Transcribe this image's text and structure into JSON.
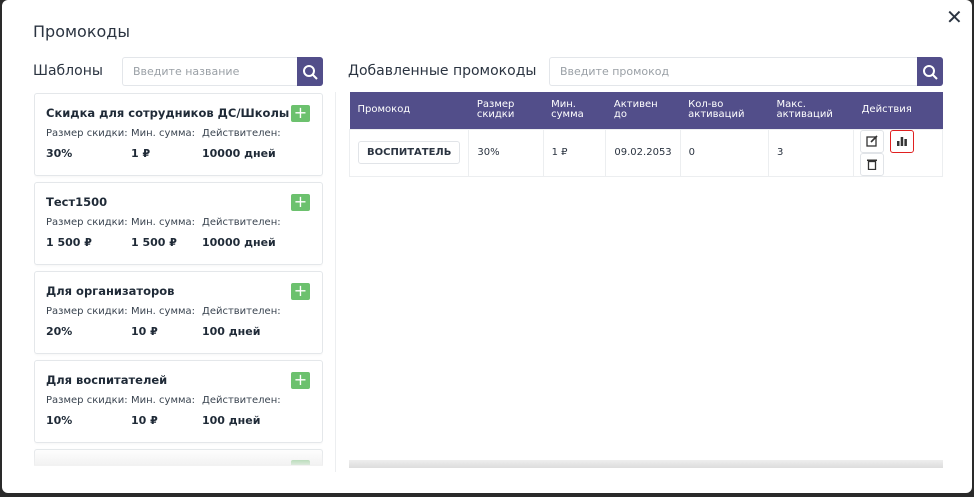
{
  "title": "Промокоды",
  "templates": {
    "heading": "Шаблоны",
    "search_placeholder": "Введите название",
    "labels": {
      "size": "Размер скидки:",
      "min": "Мин. сумма:",
      "valid": "Действителен:"
    },
    "items": [
      {
        "name": "Скидка для сотрудников ДС/Школы",
        "size": "30%",
        "min": "1 ₽",
        "valid": "10000 дней"
      },
      {
        "name": "Тест1500",
        "size": "1 500 ₽",
        "min": "1 500 ₽",
        "valid": "10000 дней"
      },
      {
        "name": "Для организаторов",
        "size": "20%",
        "min": "10 ₽",
        "valid": "100 дней"
      },
      {
        "name": "Для воспитателей",
        "size": "10%",
        "min": "10 ₽",
        "valid": "100 дней"
      }
    ]
  },
  "promocodes": {
    "heading": "Добавленные промокоды",
    "search_placeholder": "Введите промокод",
    "columns": [
      "Промокод",
      "Размер скидки",
      "Мин. сумма",
      "Активен до",
      "Кол-во активаций",
      "Макс. активаций",
      "Действия"
    ],
    "rows": [
      {
        "code": "ВОСПИТАТЕЛЬ",
        "size": "30%",
        "min": "1 ₽",
        "until": "09.02.2053",
        "count": "0",
        "max": "3"
      }
    ]
  },
  "colors": {
    "accent": "#524e8a",
    "add": "#6cc16e",
    "highlight": "#e02020"
  }
}
